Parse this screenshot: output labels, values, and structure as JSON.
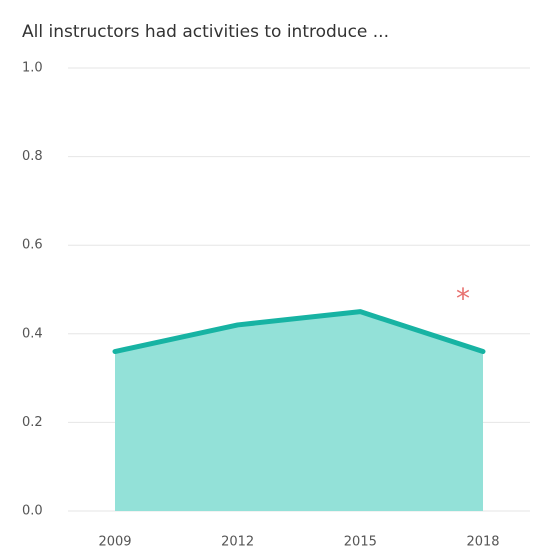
{
  "chart_data": {
    "type": "area",
    "title": "All instructors had activities to introduce ...",
    "categories": [
      "2009",
      "2012",
      "2015",
      "2018"
    ],
    "values": [
      0.36,
      0.42,
      0.45,
      0.36
    ],
    "color": "#17b3a3",
    "fill_color": "#93e1d8",
    "ylim": [
      0,
      1
    ],
    "yticks": [
      {
        "value": 0,
        "label": "0.0"
      },
      0.2,
      0.4,
      0.6,
      0.8,
      {
        "value": 1,
        "label": "1.0"
      }
    ],
    "grid": true,
    "annotations": [
      {
        "text": "*",
        "category": 3,
        "color": "#e8716f"
      }
    ]
  }
}
